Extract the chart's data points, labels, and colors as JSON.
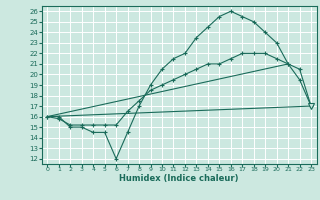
{
  "xlabel": "Humidex (Indice chaleur)",
  "xlim": [
    -0.5,
    23.5
  ],
  "ylim": [
    11.5,
    26.5
  ],
  "xticks": [
    0,
    1,
    2,
    3,
    4,
    5,
    6,
    7,
    8,
    9,
    10,
    11,
    12,
    13,
    14,
    15,
    16,
    17,
    18,
    19,
    20,
    21,
    22,
    23
  ],
  "yticks": [
    12,
    13,
    14,
    15,
    16,
    17,
    18,
    19,
    20,
    21,
    22,
    23,
    24,
    25,
    26
  ],
  "bg_color": "#cce8e0",
  "line_color": "#1a6b5a",
  "grid_color": "#ffffff",
  "curve1_x": [
    0,
    1,
    2,
    3,
    4,
    5,
    6,
    7,
    8,
    9,
    10,
    11,
    12,
    13,
    14,
    15,
    16,
    17,
    18,
    19,
    20,
    21,
    22,
    23
  ],
  "curve1_y": [
    16,
    16,
    15,
    15,
    14.5,
    14.5,
    12,
    14.5,
    17,
    19,
    20.5,
    21.5,
    22,
    23.5,
    24.5,
    25.5,
    26,
    25.5,
    25,
    24,
    23,
    21,
    19.5,
    17
  ],
  "curve2_x": [
    0,
    1,
    2,
    3,
    4,
    5,
    6,
    7,
    8,
    9,
    10,
    11,
    12,
    13,
    14,
    15,
    16,
    17,
    18,
    19,
    20,
    21,
    22,
    23
  ],
  "curve2_y": [
    16,
    15.8,
    15.2,
    15.2,
    15.2,
    15.2,
    15.2,
    16.5,
    17.5,
    18.5,
    19,
    19.5,
    20,
    20.5,
    21,
    21,
    21.5,
    22,
    22,
    22,
    21.5,
    21,
    20.5,
    17
  ],
  "curve3_x": [
    0,
    21
  ],
  "curve3_y": [
    16,
    21
  ],
  "curve4_x": [
    0,
    23
  ],
  "curve4_y": [
    16,
    17
  ]
}
